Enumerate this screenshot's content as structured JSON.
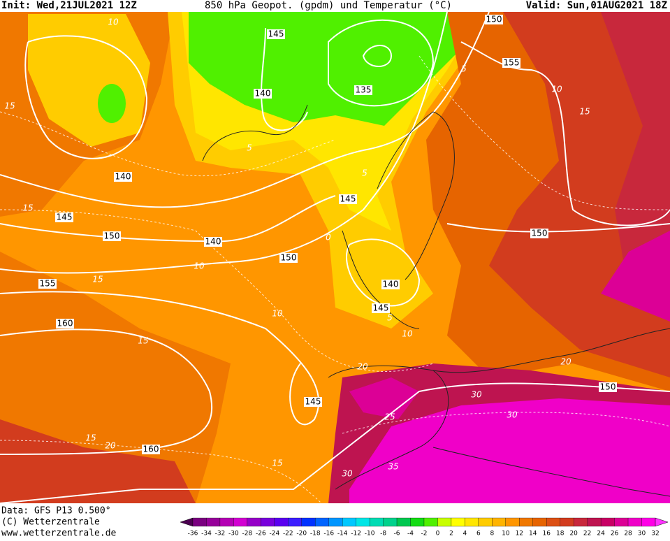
{
  "header": {
    "init": "Init: Wed,21JUL2021 12Z",
    "title": "850 hPa Geopot. (gpdm) und Temperatur (°C)",
    "valid": "Valid: Sun,01AUG2021 18Z"
  },
  "footer": {
    "data": "Data: GFS P13 0.500°",
    "copyright": "(C) Wetterzentrale",
    "url": "www.wetterzentrale.de"
  },
  "map": {
    "geopotential_labels": [
      145,
      150,
      155,
      140,
      135,
      140,
      145,
      145,
      150,
      140,
      150,
      150,
      155,
      140,
      145,
      160,
      150,
      145,
      160
    ],
    "temperature_labels": [
      10,
      15,
      5,
      5,
      10,
      15,
      15,
      10,
      0,
      5,
      15,
      10,
      15,
      5,
      10,
      20,
      20,
      30,
      25,
      30,
      15,
      20,
      15,
      30,
      35
    ]
  },
  "colorbar": {
    "ticks": [
      -36,
      -34,
      -32,
      -30,
      -28,
      -26,
      -24,
      -22,
      -20,
      -18,
      -16,
      -14,
      -12,
      -10,
      -8,
      -6,
      -4,
      -2,
      0,
      2,
      4,
      6,
      8,
      10,
      12,
      14,
      16,
      18,
      20,
      22,
      24,
      26,
      28,
      30,
      32
    ],
    "colors": [
      "#4b0050",
      "#7a0080",
      "#96009a",
      "#b400b4",
      "#d200d2",
      "#9600c8",
      "#7800dc",
      "#5a00f0",
      "#3c1eff",
      "#0032ff",
      "#0064ff",
      "#0096ff",
      "#00c8ff",
      "#00e6e6",
      "#00dcb4",
      "#00d28c",
      "#00c850",
      "#14dc14",
      "#50f000",
      "#c8ff00",
      "#ffff00",
      "#ffe600",
      "#ffcc00",
      "#ffb400",
      "#ff9600",
      "#f07800",
      "#e66400",
      "#dc5014",
      "#d23c1e",
      "#c8283c",
      "#be1450",
      "#c80064",
      "#dc0096",
      "#f000c8",
      "#ff00e6",
      "#ff32ff"
    ]
  }
}
